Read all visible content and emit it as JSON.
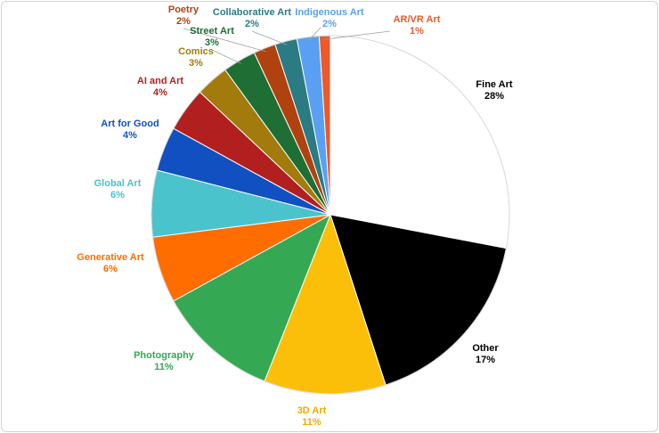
{
  "chart_data": {
    "type": "pie",
    "title": "",
    "start_angle_deg": 0,
    "direction": "clockwise",
    "slices": [
      {
        "label": "Fine Art",
        "value": 28,
        "pct_label": "28%",
        "color": "#ffffff",
        "text_color": "#000000"
      },
      {
        "label": "Other",
        "value": 17,
        "pct_label": "17%",
        "color": "#000000",
        "text_color": "#000000"
      },
      {
        "label": "3D Art",
        "value": 11,
        "pct_label": "11%",
        "color": "#fbbf0a",
        "text_color": "#f2a900"
      },
      {
        "label": "Photography",
        "value": 11,
        "pct_label": "11%",
        "color": "#35a853",
        "text_color": "#34a853"
      },
      {
        "label": "Generative Art",
        "value": 6,
        "pct_label": "6%",
        "color": "#ff6d00",
        "text_color": "#ff6d00"
      },
      {
        "label": "Global Art",
        "value": 6,
        "pct_label": "6%",
        "color": "#4ac3cd",
        "text_color": "#4ac3cd"
      },
      {
        "label": "Art for Good",
        "value": 4,
        "pct_label": "4%",
        "color": "#1150c0",
        "text_color": "#1150c0"
      },
      {
        "label": "AI and Art",
        "value": 4,
        "pct_label": "4%",
        "color": "#b21f1f",
        "text_color": "#b21f1f"
      },
      {
        "label": "Comics",
        "value": 3,
        "pct_label": "3%",
        "color": "#a37a0c",
        "text_color": "#a37a0c"
      },
      {
        "label": "Street Art",
        "value": 3,
        "pct_label": "3%",
        "color": "#1f6e33",
        "text_color": "#1f6e33"
      },
      {
        "label": "Poetry",
        "value": 2,
        "pct_label": "2%",
        "color": "#b0420f",
        "text_color": "#b0420f"
      },
      {
        "label": "Collaborative Art",
        "value": 2,
        "pct_label": "2%",
        "color": "#2a7b82",
        "text_color": "#2a7b82"
      },
      {
        "label": "Indigenous Art",
        "value": 2,
        "pct_label": "2%",
        "color": "#5aa0f2",
        "text_color": "#5aa0f2"
      },
      {
        "label": "AR/VR Art",
        "value": 1,
        "pct_label": "1%",
        "color": "#ea5a2b",
        "text_color": "#ea5a2b"
      }
    ]
  }
}
